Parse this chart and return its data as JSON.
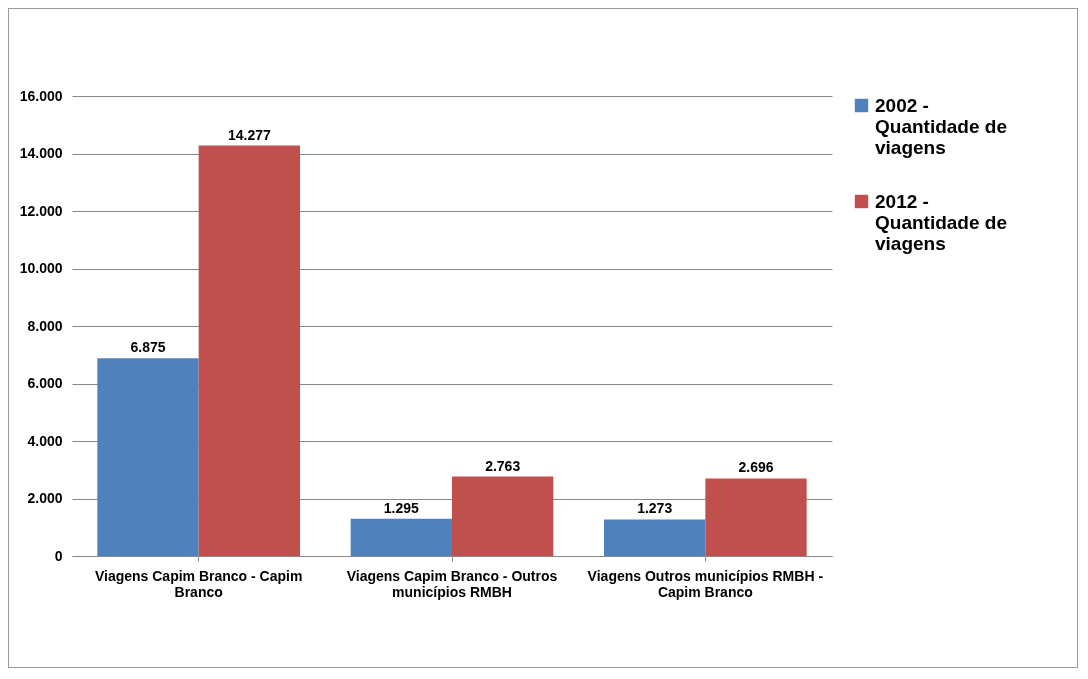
{
  "chart_data": {
    "type": "bar",
    "categories": [
      "Viagens Capim Branco - Capim Branco",
      "Viagens Capim Branco - Outros municípios RMBH",
      "Viagens Outros municípios RMBH - Capim Branco"
    ],
    "series": [
      {
        "name": "2002 - Quantidade de viagens",
        "color": "#4f81bd",
        "values": [
          6875,
          1295,
          1273
        ],
        "value_labels": [
          "6.875",
          "1.295",
          "1.273"
        ]
      },
      {
        "name": "2012 - Quantidade de viagens",
        "color": "#c0504d",
        "values": [
          14277,
          2763,
          2696
        ],
        "value_labels": [
          "14.277",
          "2.763",
          "2.696"
        ]
      }
    ],
    "ylim": [
      0,
      16000
    ],
    "yticks": [
      {
        "value": 0,
        "label": "0"
      },
      {
        "value": 2000,
        "label": "2.000"
      },
      {
        "value": 4000,
        "label": "4.000"
      },
      {
        "value": 6000,
        "label": "6.000"
      },
      {
        "value": 8000,
        "label": "8.000"
      },
      {
        "value": 10000,
        "label": "10.000"
      },
      {
        "value": 12000,
        "label": "12.000"
      },
      {
        "value": 14000,
        "label": "14.000"
      },
      {
        "value": 16000,
        "label": "16.000"
      }
    ],
    "grid": "y",
    "legend": "right"
  }
}
